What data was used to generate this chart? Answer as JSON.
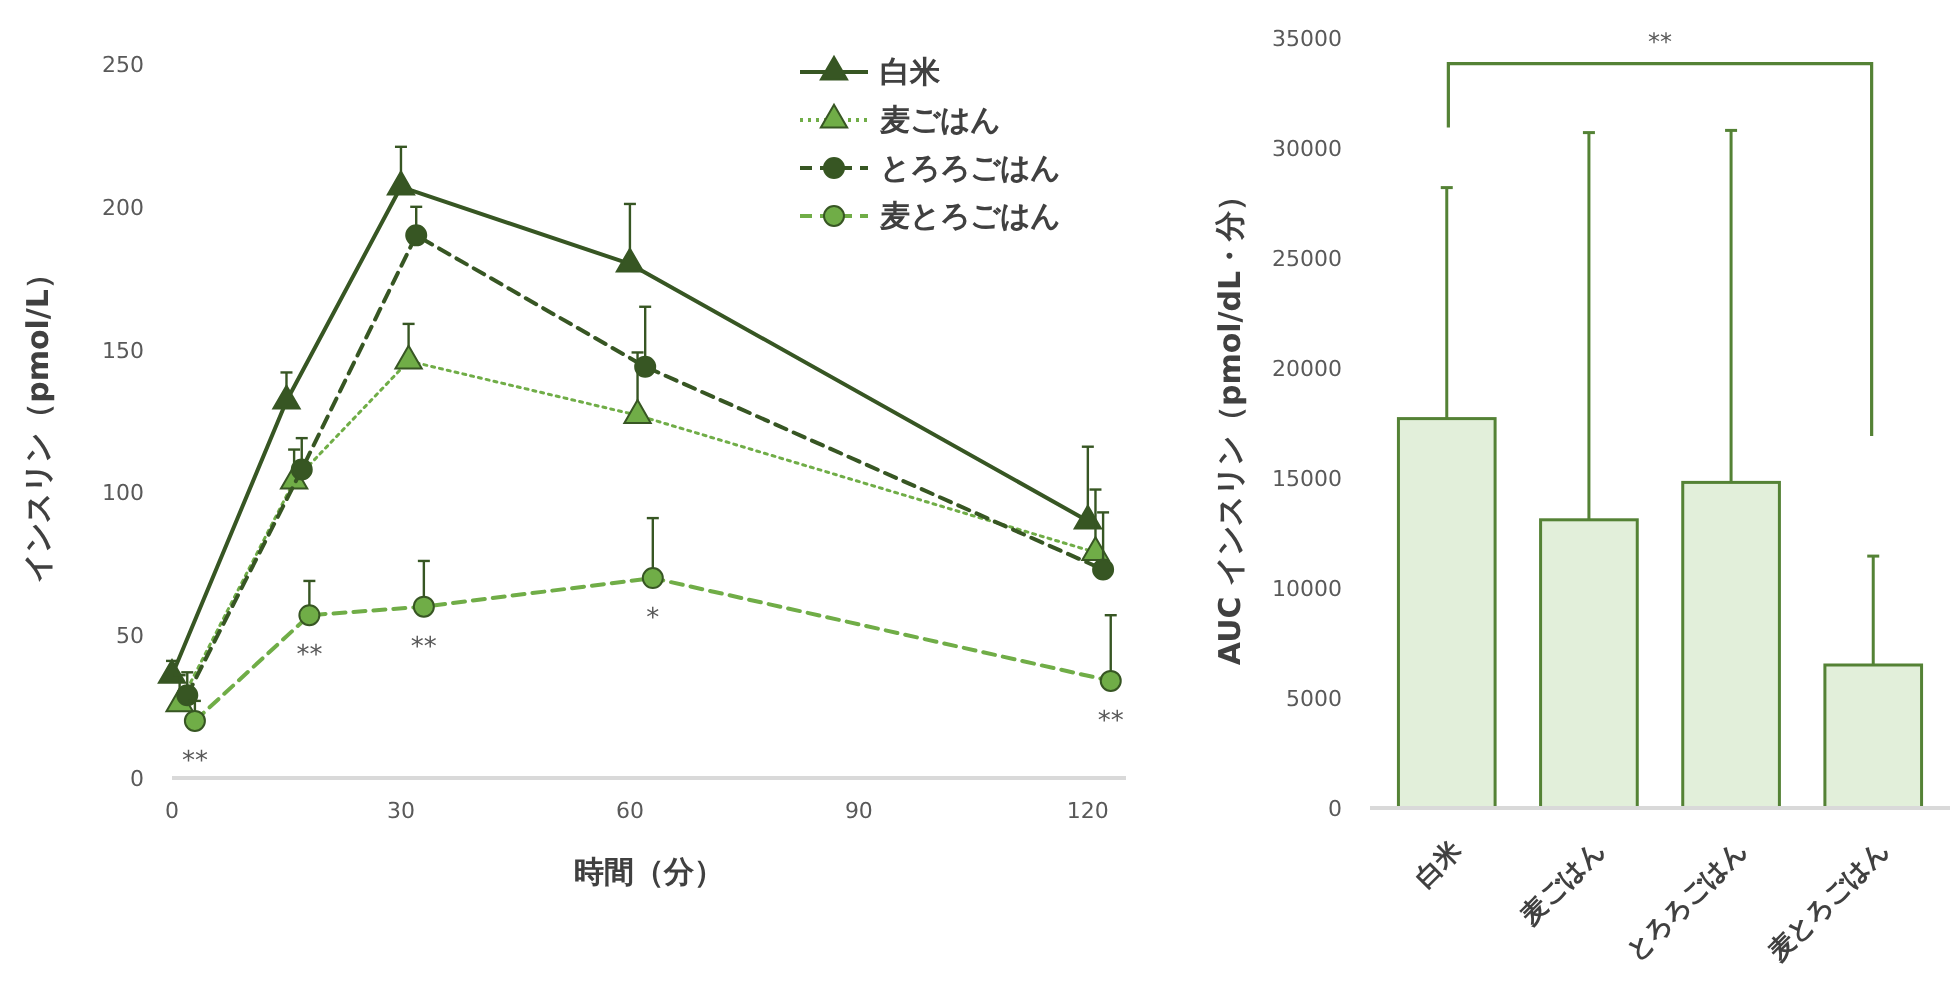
{
  "chart_data": [
    {
      "type": "line",
      "xlabel": "時間（分）",
      "ylabel": "インスリン（pmol/L）",
      "xlim": [
        0,
        125
      ],
      "xticks": [
        0,
        30,
        60,
        90,
        120
      ],
      "ylim": [
        0,
        250
      ],
      "yticks": [
        0,
        50,
        100,
        150,
        200,
        250
      ],
      "grid": false,
      "legend": "top right",
      "series": [
        {
          "name": "白米",
          "color": "#375623",
          "marker": "triangle",
          "line_style": "solid",
          "x": [
            0,
            15,
            30,
            60,
            120
          ],
          "values": [
            36,
            132,
            207,
            180,
            90
          ],
          "errors": [
            [
              36,
              41
            ],
            [
              132,
              142
            ],
            [
              207,
              221
            ],
            [
              180,
              201
            ],
            [
              90,
              116
            ]
          ]
        },
        {
          "name": "麦ごはん",
          "color": "#70ad47",
          "marker": "triangle",
          "line_style": "dotted",
          "x": [
            1,
            16,
            31,
            61,
            121
          ],
          "values": [
            26,
            104,
            146,
            127,
            79
          ],
          "errors": [
            [
              26,
              36
            ],
            [
              104,
              115
            ],
            [
              146,
              159
            ],
            [
              127,
              149
            ],
            [
              79,
              101
            ]
          ]
        },
        {
          "name": "とろろごはん",
          "color": "#375623",
          "marker": "circle",
          "line_style": "dashed",
          "x": [
            2,
            17,
            32,
            62,
            122
          ],
          "values": [
            29,
            108,
            190,
            144,
            73
          ],
          "errors": [
            [
              29,
              37
            ],
            [
              108,
              119
            ],
            [
              190,
              200
            ],
            [
              144,
              165
            ],
            [
              73,
              93
            ]
          ]
        },
        {
          "name": "麦とろごはん",
          "color": "#70ad47",
          "marker": "circle",
          "line_style": "dashed",
          "x": [
            3,
            18,
            33,
            63,
            123
          ],
          "values": [
            20,
            57,
            60,
            70,
            34
          ],
          "errors": [
            [
              20,
              27
            ],
            [
              57,
              69
            ],
            [
              60,
              76
            ],
            [
              70,
              91
            ],
            [
              34,
              57
            ]
          ]
        }
      ],
      "annotations": [
        {
          "text": "**",
          "x": 3,
          "y": 20
        },
        {
          "text": "**",
          "x": 18,
          "y": 57
        },
        {
          "text": "**",
          "x": 33,
          "y": 60
        },
        {
          "text": "*",
          "x": 63,
          "y": 70
        },
        {
          "text": "**",
          "x": 123,
          "y": 34
        }
      ]
    },
    {
      "type": "bar",
      "ylabel": "AUC インスリン（pmol/dL・分）",
      "categories": [
        "白米",
        "麦ごはん",
        "とろろごはん",
        "麦とろごはん"
      ],
      "values": [
        17700,
        13100,
        14800,
        6500
      ],
      "errors": [
        [
          17700,
          28200
        ],
        [
          13100,
          30700
        ],
        [
          14800,
          30800
        ],
        [
          6500,
          11450
        ]
      ],
      "color": "#e2efda",
      "ylim": [
        0,
        35000
      ],
      "yticks": [
        0,
        5000,
        10000,
        15000,
        20000,
        25000,
        30000,
        35000
      ],
      "grid": false,
      "annotations": [
        "**"
      ]
    }
  ]
}
